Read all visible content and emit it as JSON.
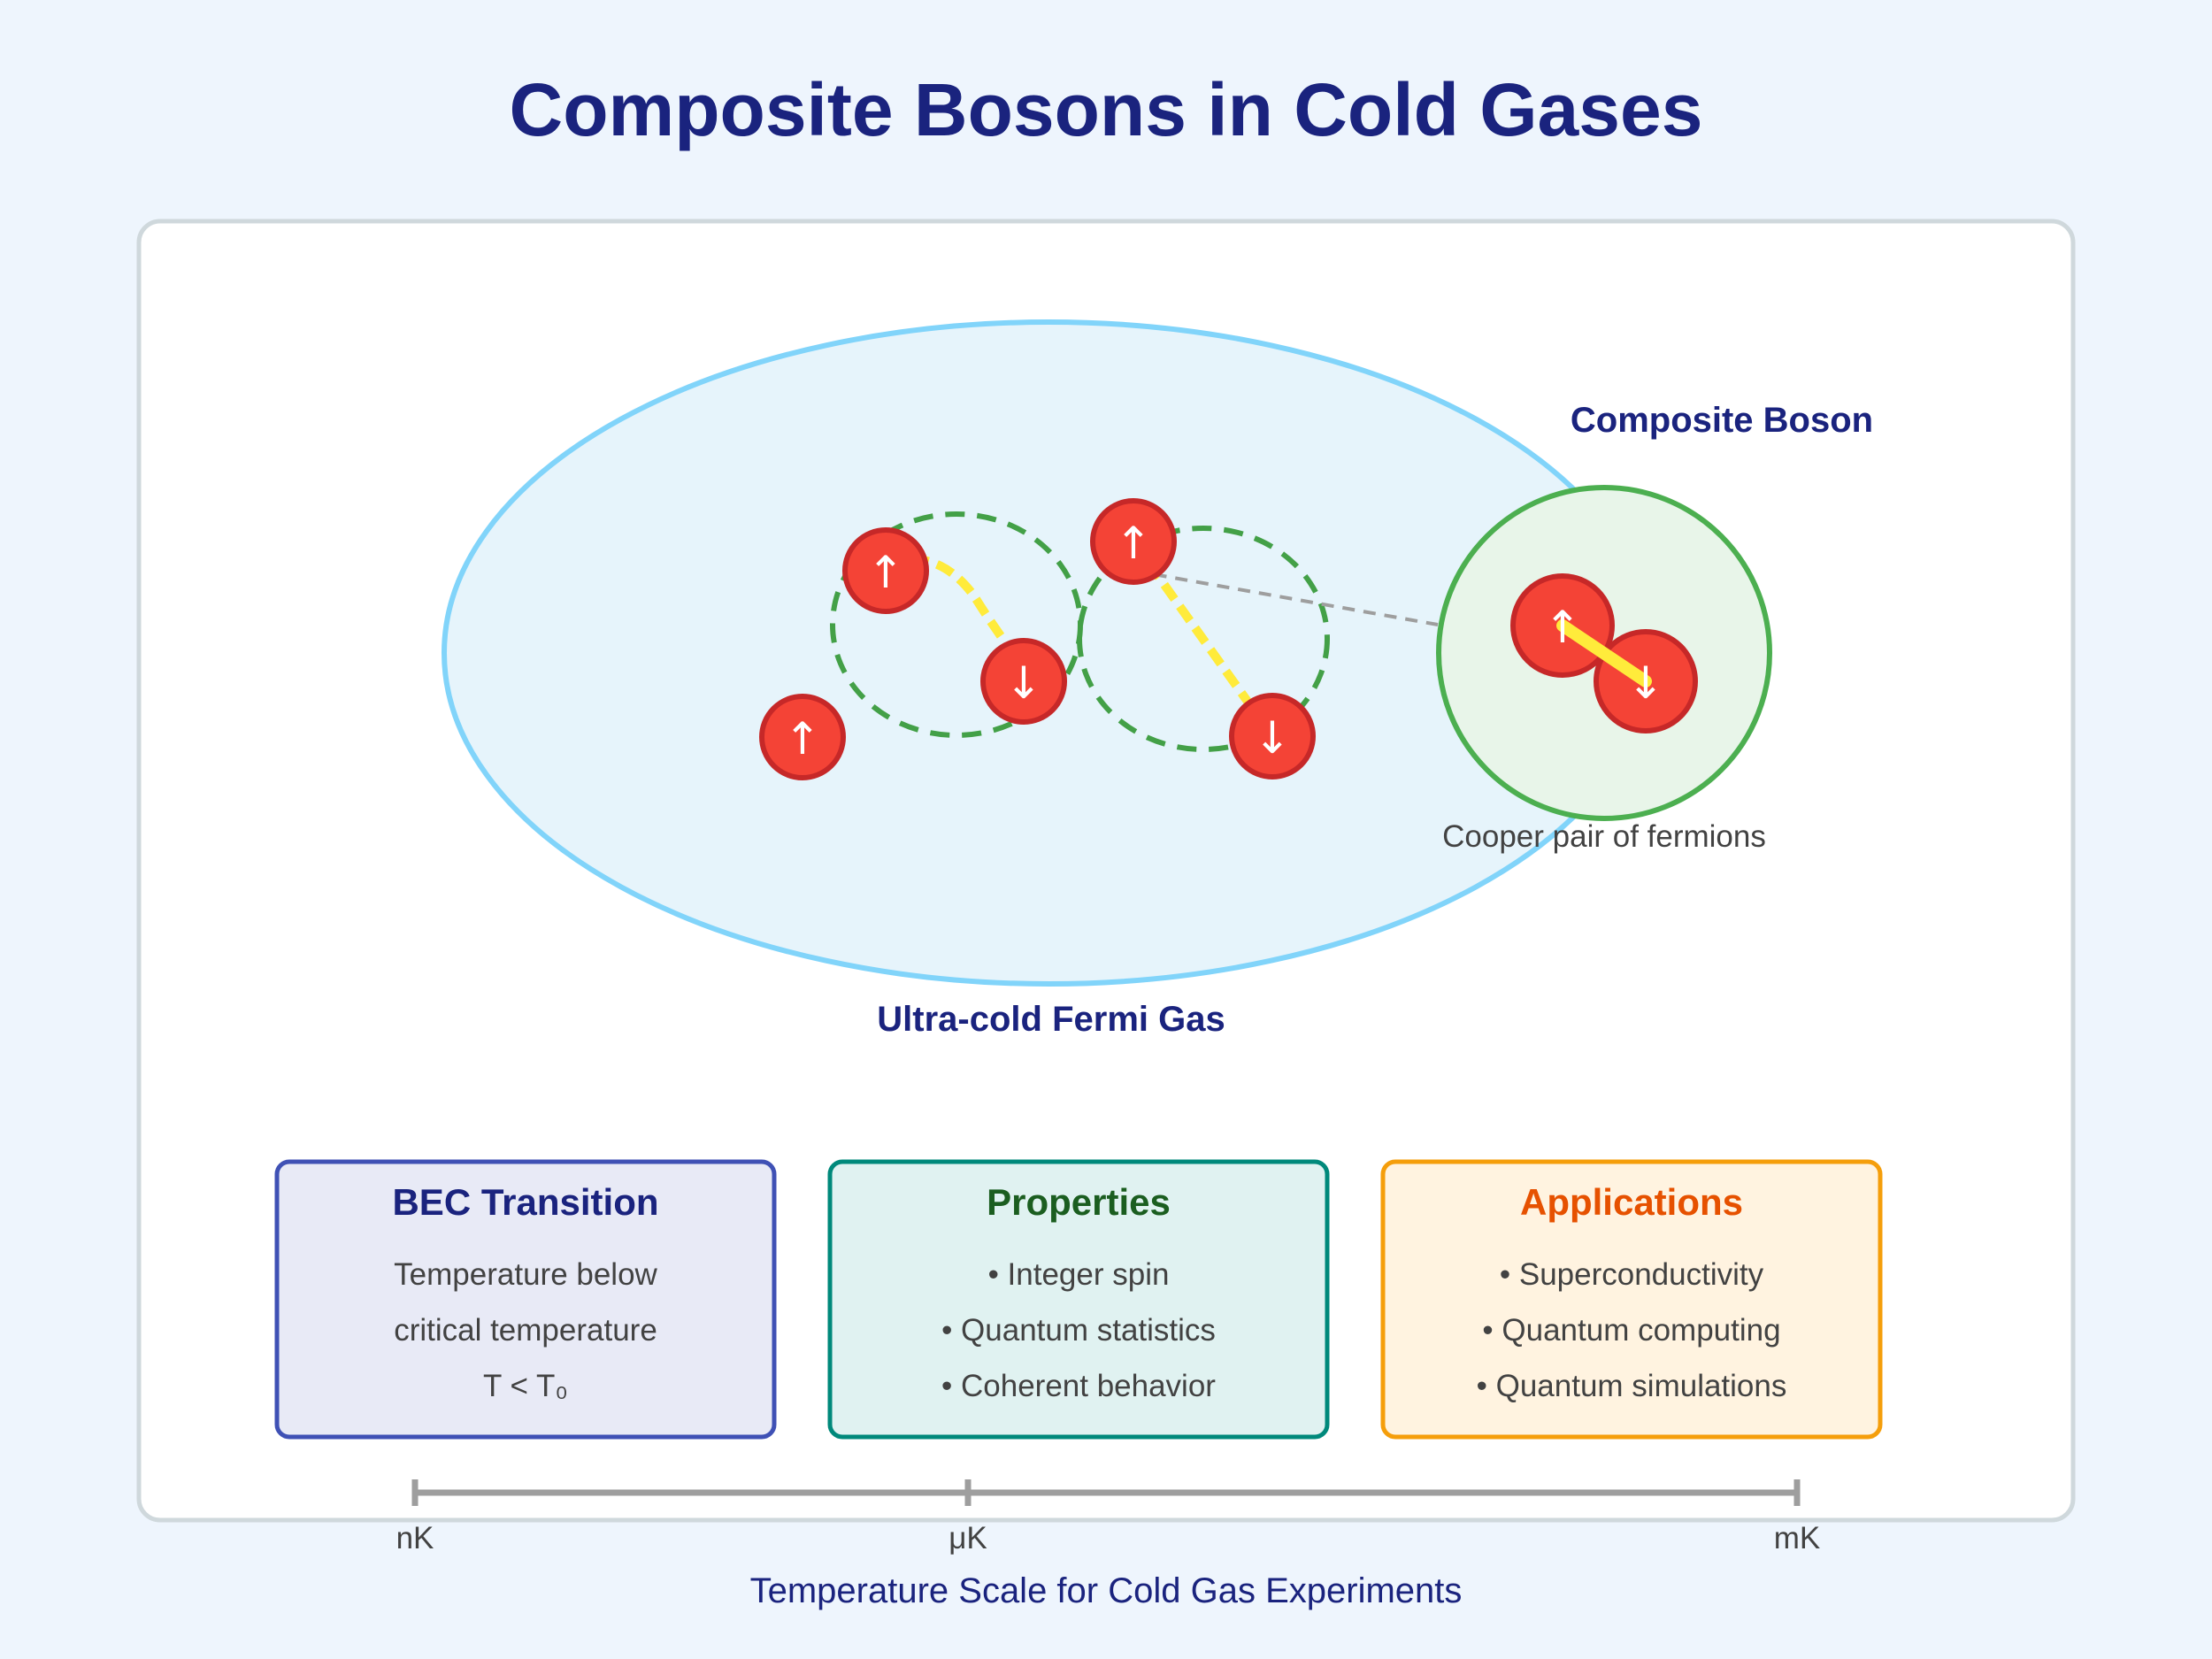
{
  "title": "Composite Bosons in Cold Gases",
  "fermi_gas": {
    "label": "Ultra-cold Fermi Gas"
  },
  "spins": {
    "up": "↑",
    "down": "↓"
  },
  "composite": {
    "label": "Composite Boson",
    "caption": "Cooper pair of fermions"
  },
  "cards": [
    {
      "title": "BEC Transition",
      "lines": [
        "Temperature below",
        "critical temperature",
        "T < T₀"
      ],
      "title_color": "#1a237e",
      "fill": "#e8eaf6",
      "border": "#3f51b5"
    },
    {
      "title": "Properties",
      "lines": [
        "• Integer spin",
        "• Quantum statistics",
        "• Coherent behavior"
      ],
      "title_color": "#1b5e20",
      "fill": "#e0f2f1",
      "border": "#00897b"
    },
    {
      "title": "Applications",
      "lines": [
        "• Superconductivity",
        "• Quantum computing",
        "• Quantum simulations"
      ],
      "title_color": "#e65100",
      "fill": "#fff3e0",
      "border": "#f59e0b"
    }
  ],
  "temperature_scale": {
    "ticks": [
      "nK",
      "μK",
      "mK"
    ],
    "label": "Temperature Scale for Cold Gas Experiments"
  },
  "colors": {
    "title": "#1a237e",
    "gas_fill": "#e6f4fb",
    "gas_stroke": "#81d4fa",
    "particle_fill": "#f44336",
    "particle_stroke": "#c62828",
    "pair_bond": "#ffeb3b",
    "pair_ring": "#4caf50",
    "composite_fill": "#e8f5e9"
  }
}
